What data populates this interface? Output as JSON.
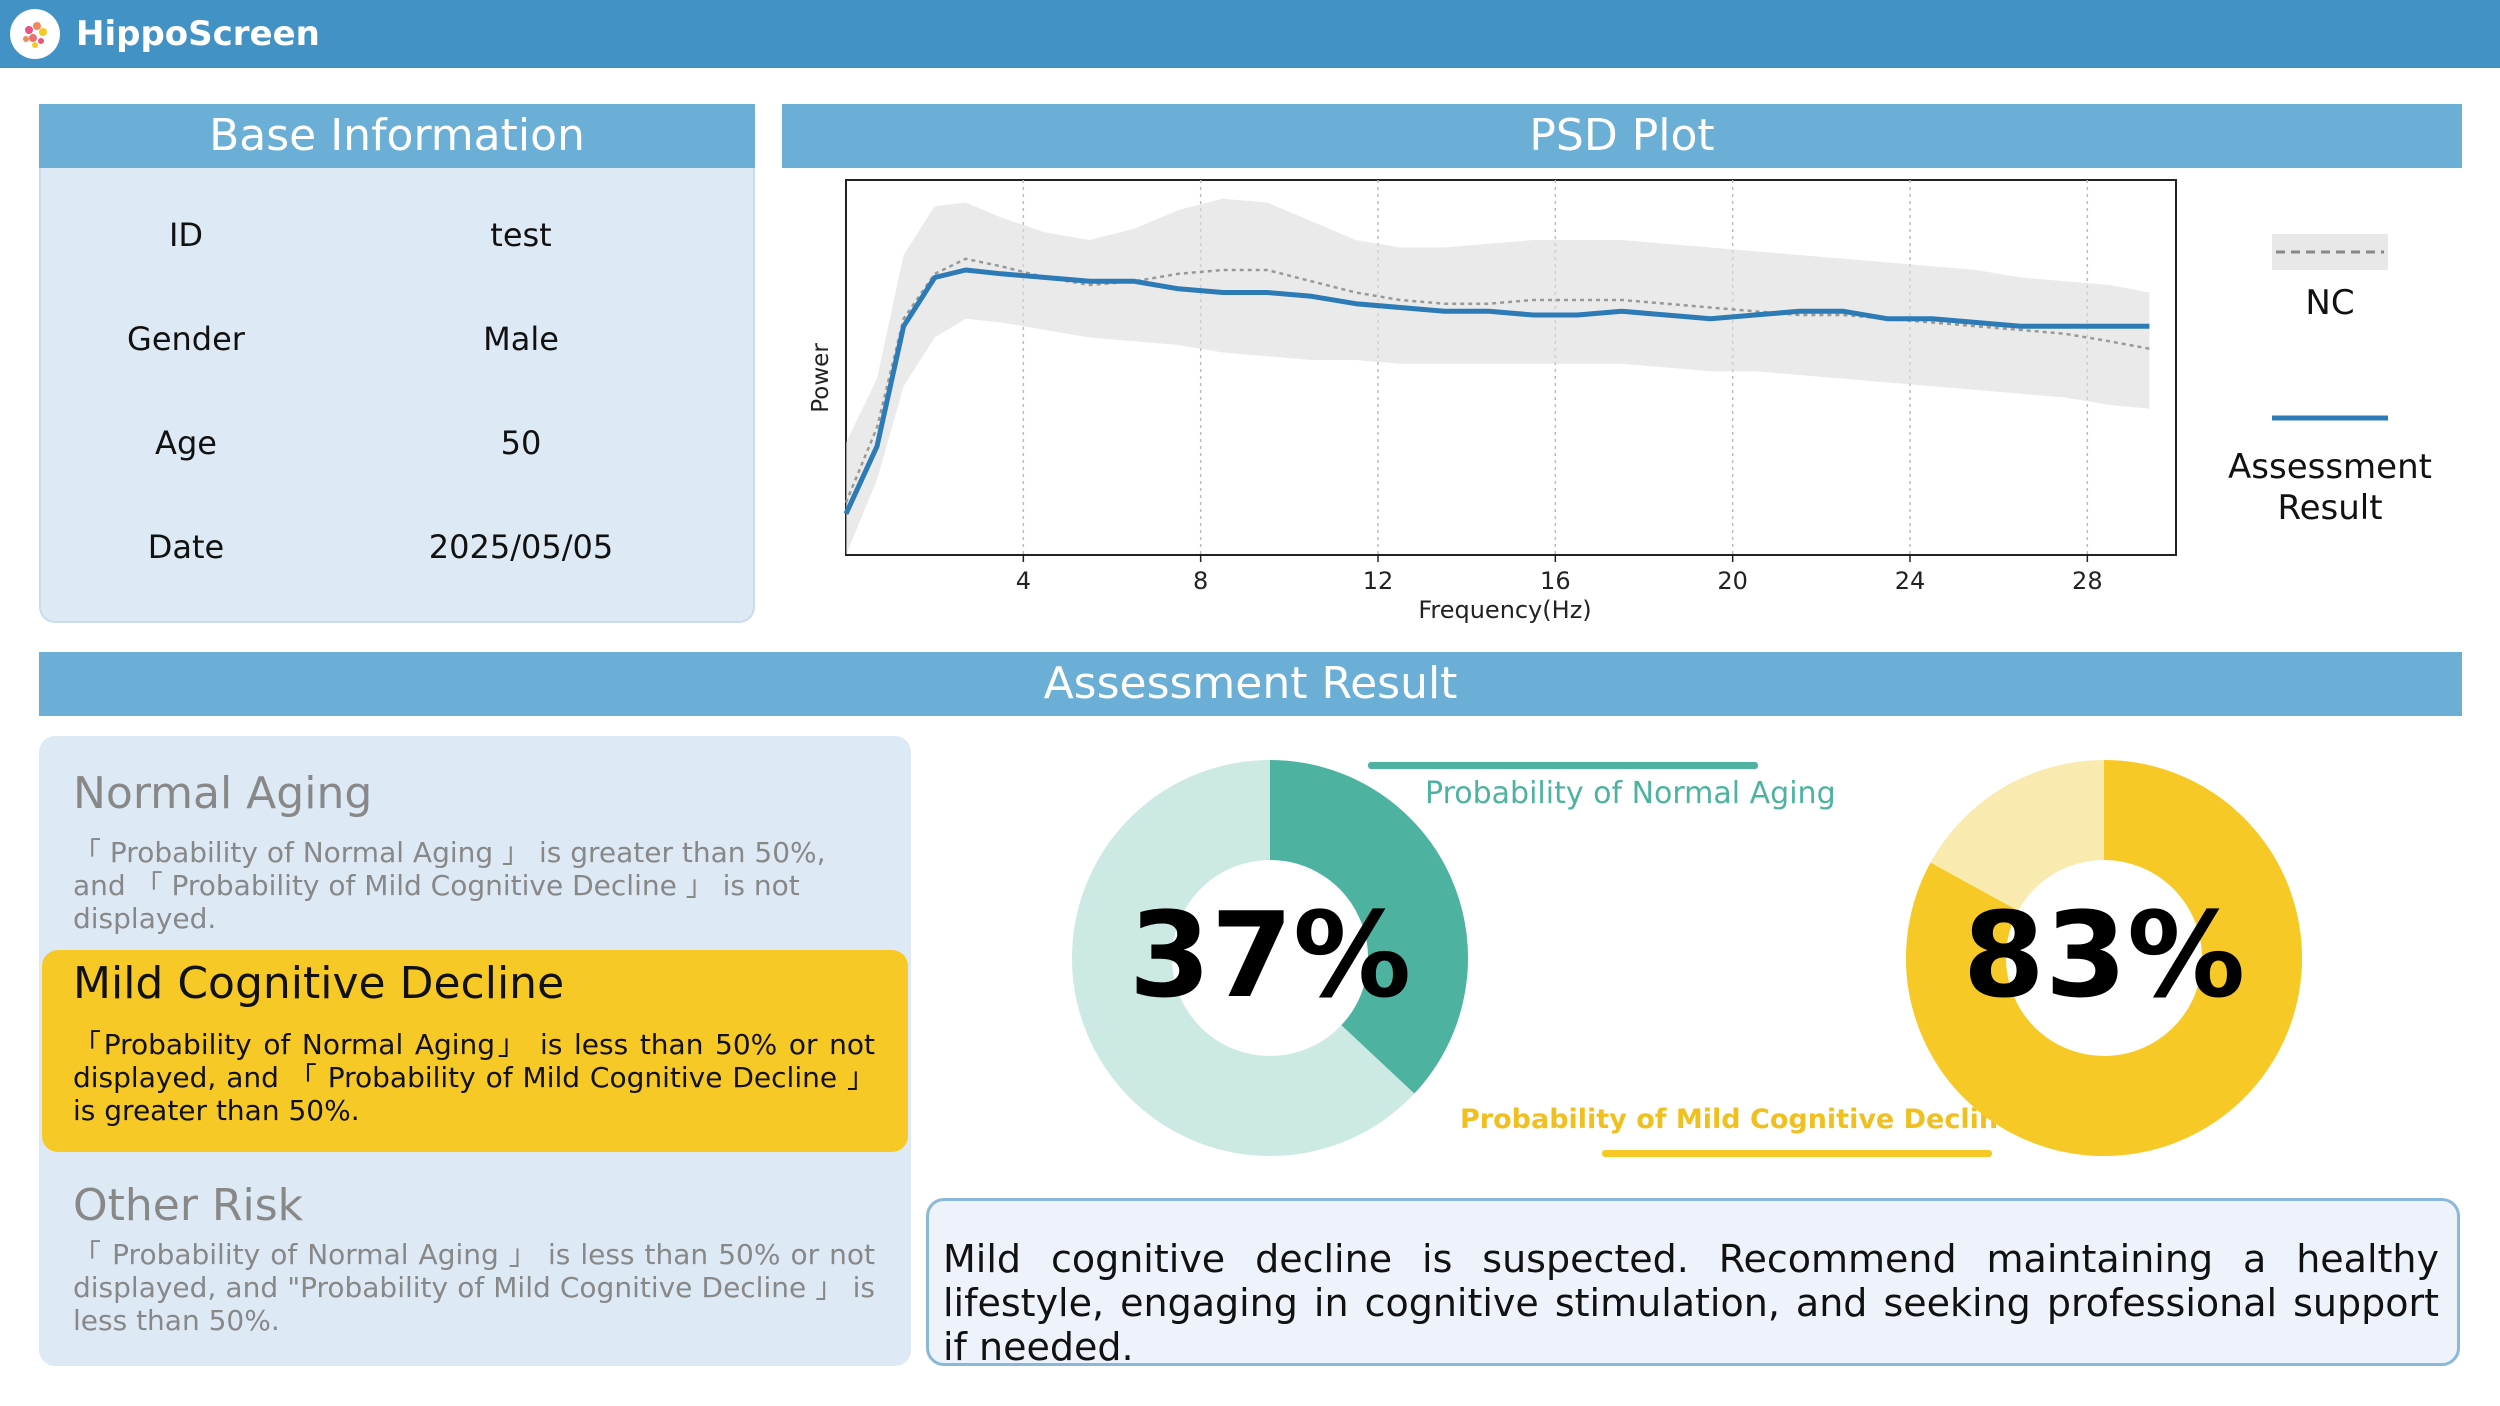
{
  "app": {
    "title": "HippoScreen"
  },
  "base_info": {
    "header": "Base Information",
    "rows": [
      {
        "label": "ID",
        "value": "test"
      },
      {
        "label": "Gender",
        "value": "Male"
      },
      {
        "label": "Age",
        "value": "50"
      },
      {
        "label": "Date",
        "value": "2025/05/05"
      }
    ]
  },
  "psd": {
    "header": "PSD Plot",
    "legend": {
      "nc": "NC",
      "assessment_line1": "Assessment",
      "assessment_line2": "Result"
    }
  },
  "chart_data": {
    "type": "line",
    "title": "PSD Plot",
    "xlabel": "Frequency(Hz)",
    "ylabel": "Power",
    "xlim": [
      0,
      30
    ],
    "ylim": [
      0,
      1
    ],
    "xticks": [
      "4",
      "8",
      "12",
      "16",
      "20",
      "24",
      "28"
    ],
    "x": [
      0,
      0.7,
      1.3,
      2,
      2.7,
      3.5,
      4.5,
      5.5,
      6.5,
      7.5,
      8.5,
      9.5,
      10.5,
      11.5,
      12.5,
      13.5,
      14.5,
      15.5,
      16.5,
      17.5,
      18.5,
      19.5,
      20.5,
      21.5,
      22.5,
      23.5,
      24.5,
      25.5,
      26.5,
      27.5,
      28.5,
      29.4
    ],
    "series": [
      {
        "name": "Assessment Result",
        "color": "#2c7bb6",
        "values": [
          0.11,
          0.29,
          0.61,
          0.74,
          0.76,
          0.75,
          0.74,
          0.73,
          0.73,
          0.71,
          0.7,
          0.7,
          0.69,
          0.67,
          0.66,
          0.65,
          0.65,
          0.64,
          0.64,
          0.65,
          0.64,
          0.63,
          0.64,
          0.65,
          0.65,
          0.63,
          0.63,
          0.62,
          0.61,
          0.61,
          0.61,
          0.61
        ]
      },
      {
        "name": "NC",
        "color": "#999999",
        "values": [
          0.14,
          0.34,
          0.63,
          0.75,
          0.79,
          0.77,
          0.74,
          0.72,
          0.73,
          0.75,
          0.76,
          0.76,
          0.73,
          0.7,
          0.68,
          0.67,
          0.67,
          0.68,
          0.68,
          0.68,
          0.67,
          0.66,
          0.65,
          0.64,
          0.64,
          0.63,
          0.62,
          0.61,
          0.6,
          0.59,
          0.57,
          0.55
        ]
      }
    ],
    "band_upper": [
      0.3,
      0.47,
      0.8,
      0.93,
      0.94,
      0.9,
      0.86,
      0.84,
      0.87,
      0.92,
      0.95,
      0.94,
      0.89,
      0.84,
      0.82,
      0.82,
      0.83,
      0.84,
      0.84,
      0.84,
      0.83,
      0.82,
      0.81,
      0.8,
      0.79,
      0.78,
      0.77,
      0.76,
      0.74,
      0.73,
      0.72,
      0.7
    ],
    "band_lower": [
      0.0,
      0.2,
      0.45,
      0.58,
      0.63,
      0.62,
      0.6,
      0.58,
      0.57,
      0.56,
      0.54,
      0.53,
      0.52,
      0.52,
      0.51,
      0.51,
      0.51,
      0.51,
      0.51,
      0.51,
      0.5,
      0.49,
      0.49,
      0.48,
      0.47,
      0.46,
      0.45,
      0.44,
      0.43,
      0.42,
      0.4,
      0.39
    ],
    "grid": "vertical-dotted",
    "legend": "right"
  },
  "assessment": {
    "header": "Assessment Result",
    "categories": [
      {
        "title": "Normal Aging",
        "desc_line1": "「 Probability of Normal Aging 」 is greater than 50%,",
        "desc_line2": "and 「 Probability of Mild Cognitive Decline 」 is not displayed."
      },
      {
        "title": "Mild Cognitive Decline",
        "desc": "「Probability of Normal Aging」 is less than 50% or not displayed, and 「 Probability of Mild Cognitive Decline 」 is greater than 50%."
      },
      {
        "title": "Other Risk",
        "desc": "「 Probability of Normal Aging 」 is less than 50% or not displayed, and \"Probability of Mild Cognitive Decline 」 is less than 50%."
      }
    ],
    "normal_aging": {
      "label": "Probability of Normal Aging",
      "percent": 37,
      "percent_text": "37%",
      "color": "#4db3a0",
      "track_color": "#cce9e3"
    },
    "mcd": {
      "label": "Probability of Mild Cognitive Decline",
      "percent": 83,
      "percent_text": "83%",
      "color": "#f7c927",
      "track_color": "#f9ebb0"
    },
    "recommendation": "Mild cognitive decline is suspected. Recommend maintaining a healthy lifestyle, engaging in cognitive stimulation, and seeking professional support if needed."
  }
}
